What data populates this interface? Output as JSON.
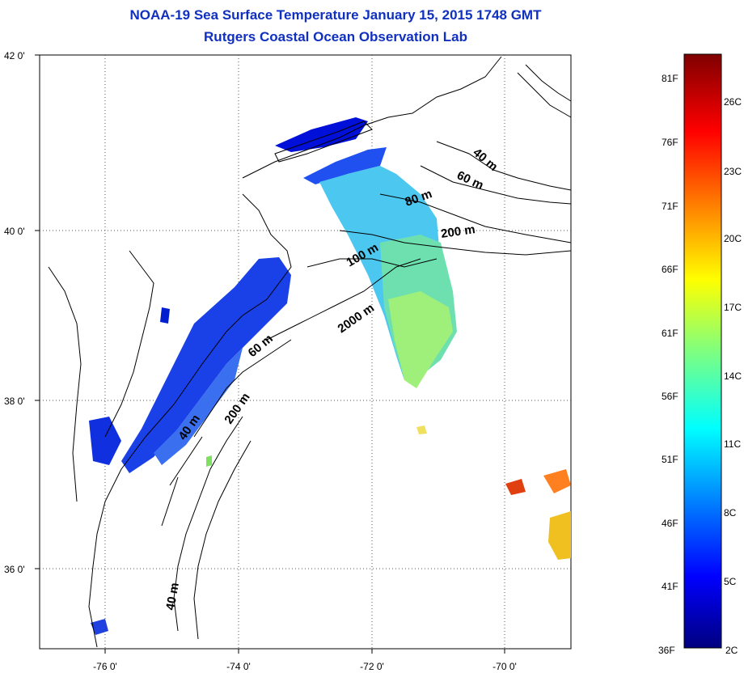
{
  "title": {
    "line1": "NOAA-19 Sea Surface Temperature January 15, 2015 1748 GMT",
    "line2": "Rutgers Coastal Ocean Observation Lab"
  },
  "map": {
    "lat_labels": [
      "42 0'",
      "40 0'",
      "38 0'",
      "36 0'"
    ],
    "lon_labels": [
      "-76 0'",
      "-74 0'",
      "-72 0'",
      "-70 0'"
    ],
    "contour_labels": [
      "40 m",
      "60 m",
      "80 m",
      "200 m",
      "100 m",
      "2000 m",
      "60 m",
      "40 m",
      "200 m",
      "40 m"
    ]
  },
  "colorbar": {
    "fahrenheit_labels": [
      "81F",
      "76F",
      "71F",
      "66F",
      "61F",
      "56F",
      "51F",
      "46F",
      "41F",
      "36F"
    ],
    "celsius_labels": [
      "26C",
      "23C",
      "20C",
      "17C",
      "14C",
      "11C",
      "8C",
      "5C",
      "2C"
    ],
    "colors": [
      "#00007f",
      "#0000ff",
      "#007fff",
      "#00ffff",
      "#7fff7f",
      "#ffff00",
      "#ff7f00",
      "#ff0000",
      "#7f0000"
    ]
  }
}
